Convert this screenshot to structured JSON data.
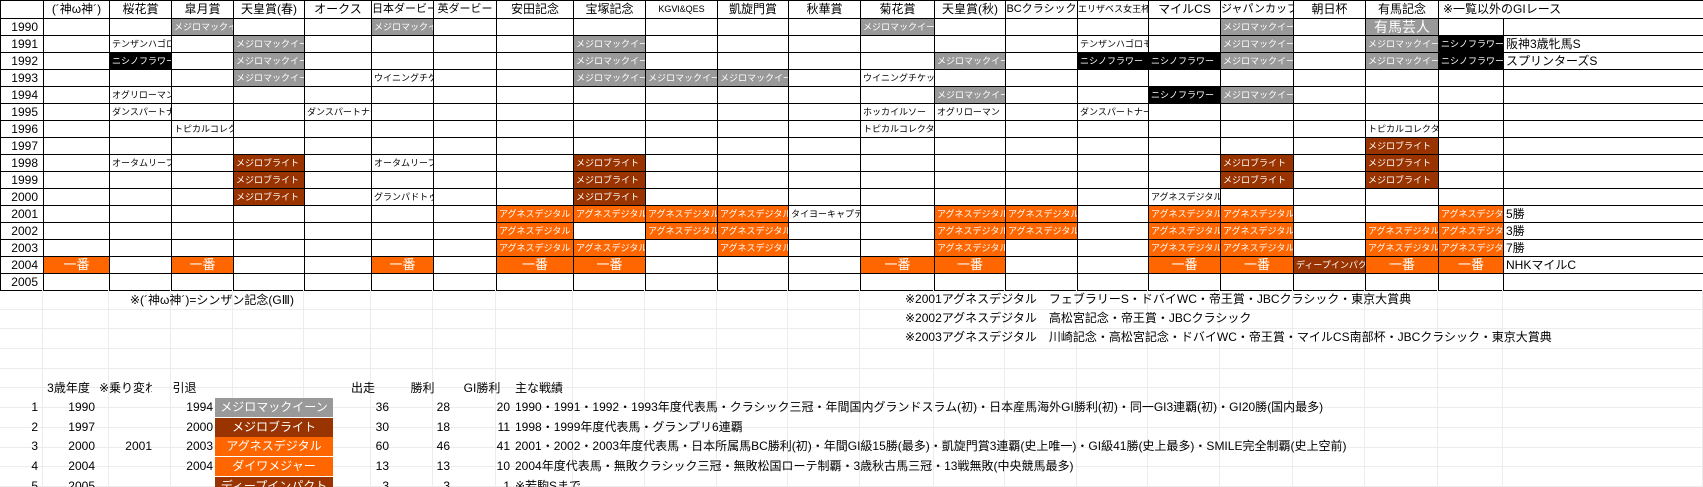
{
  "colors": {
    "mcqueen_gray": "#999999",
    "nishino_black": "#000000",
    "bright_dark_orange": "#993300",
    "digital_orange": "#FF6600",
    "grid_border": "#000000",
    "faint_gridline": "#ECECEC"
  },
  "grid": {
    "corner_label": "",
    "columns": [
      {
        "key": "kami",
        "label": "(´神ω神´)"
      },
      {
        "key": "oka",
        "label": "桜花賞"
      },
      {
        "key": "satsuki",
        "label": "皐月賞"
      },
      {
        "key": "haruten",
        "label": "天皇賞(春)"
      },
      {
        "key": "oaks",
        "label": "オークス"
      },
      {
        "key": "derby",
        "label": "日本ダービー"
      },
      {
        "key": "ederby",
        "label": "英ダービー"
      },
      {
        "key": "yasuda",
        "label": "安田記念"
      },
      {
        "key": "takarazuka",
        "label": "宝塚記念"
      },
      {
        "key": "kg",
        "label": "KGⅥ&QES"
      },
      {
        "key": "arc",
        "label": "凱旋門賞"
      },
      {
        "key": "shuka",
        "label": "秋華賞"
      },
      {
        "key": "kikka",
        "label": "菊花賞"
      },
      {
        "key": "akiten",
        "label": "天皇賞(秋)"
      },
      {
        "key": "bc",
        "label": "BCクラシック"
      },
      {
        "key": "eliza",
        "label": "エリザベス女王杯"
      },
      {
        "key": "milecs",
        "label": "マイルCS"
      },
      {
        "key": "jc",
        "label": "ジャパンカップ"
      },
      {
        "key": "asahi",
        "label": "朝日杯"
      },
      {
        "key": "arima",
        "label": "有馬記念"
      },
      {
        "key": "extra",
        "label": "※一覧以外のGIレース"
      }
    ],
    "years": [
      "1990",
      "1991",
      "1992",
      "1993",
      "1994",
      "1995",
      "1996",
      "1997",
      "1998",
      "1999",
      "2000",
      "2001",
      "2002",
      "2003",
      "2004",
      "2005"
    ],
    "cells": [
      {
        "year": "1990",
        "col": "satsuki",
        "text": "メジロマックイーン",
        "style": "gray"
      },
      {
        "year": "1990",
        "col": "derby",
        "text": "メジロマックイーン",
        "style": "gray"
      },
      {
        "year": "1990",
        "col": "kikka",
        "text": "メジロマックイーン",
        "style": "gray"
      },
      {
        "year": "1990",
        "col": "jc",
        "text": "メジロマックイーン",
        "style": "gray"
      },
      {
        "year": "1990",
        "col": "arima",
        "text": "有馬芸人",
        "style": "geinin"
      },
      {
        "year": "1991",
        "col": "oka",
        "text": "テンザンハゴロモ",
        "style": "plain"
      },
      {
        "year": "1991",
        "col": "haruten",
        "text": "メジロマックイーン",
        "style": "gray"
      },
      {
        "year": "1991",
        "col": "takarazuka",
        "text": "メジロマックイーン",
        "style": "gray"
      },
      {
        "year": "1991",
        "col": "eliza",
        "text": "テンザンハゴロモ",
        "style": "plain"
      },
      {
        "year": "1991",
        "col": "jc",
        "text": "メジロマックイーン",
        "style": "gray"
      },
      {
        "year": "1991",
        "col": "arima",
        "text": "メジロマックイーン",
        "style": "gray"
      },
      {
        "year": "1991",
        "col": "v1",
        "text": "ニシノフラワー",
        "style": "black"
      },
      {
        "year": "1991",
        "col": "v2",
        "text": "阪神3歳牝馬S",
        "style": "plain_lg"
      },
      {
        "year": "1992",
        "col": "oka",
        "text": "ニシノフラワー",
        "style": "black"
      },
      {
        "year": "1992",
        "col": "haruten",
        "text": "メジロマックイーン",
        "style": "gray"
      },
      {
        "year": "1992",
        "col": "takarazuka",
        "text": "メジロマックイーン",
        "style": "gray"
      },
      {
        "year": "1992",
        "col": "akiten",
        "text": "メジロマックイーン",
        "style": "gray"
      },
      {
        "year": "1992",
        "col": "eliza",
        "text": "ニシノフラワー",
        "style": "black"
      },
      {
        "year": "1992",
        "col": "milecs",
        "text": "ニシノフラワー",
        "style": "black"
      },
      {
        "year": "1992",
        "col": "jc",
        "text": "メジロマックイーン",
        "style": "gray"
      },
      {
        "year": "1992",
        "col": "arima",
        "text": "メジロマックイーン",
        "style": "gray"
      },
      {
        "year": "1992",
        "col": "v1",
        "text": "ニシノフラワー",
        "style": "black"
      },
      {
        "year": "1992",
        "col": "v2",
        "text": "スプリンターズS",
        "style": "plain_lg"
      },
      {
        "year": "1993",
        "col": "haruten",
        "text": "メジロマックイーン",
        "style": "gray"
      },
      {
        "year": "1993",
        "col": "derby",
        "text": "ウイニングチケット",
        "style": "plain"
      },
      {
        "year": "1993",
        "col": "takarazuka",
        "text": "メジロマックイーン",
        "style": "gray"
      },
      {
        "year": "1993",
        "col": "kg",
        "text": "メジロマックイーン",
        "style": "gray"
      },
      {
        "year": "1993",
        "col": "arc",
        "text": "メジロマックイーン",
        "style": "gray"
      },
      {
        "year": "1993",
        "col": "kikka",
        "text": "ウイニングチケット",
        "style": "plain"
      },
      {
        "year": "1994",
        "col": "oka",
        "text": "オグリローマン",
        "style": "plain"
      },
      {
        "year": "1994",
        "col": "akiten",
        "text": "メジロマックイーン",
        "style": "gray"
      },
      {
        "year": "1994",
        "col": "milecs",
        "text": "ニシノフラワー",
        "style": "black"
      },
      {
        "year": "1994",
        "col": "jc",
        "text": "メジロマックイーン",
        "style": "gray"
      },
      {
        "year": "1995",
        "col": "oka",
        "text": "ダンスパートナー",
        "style": "plain"
      },
      {
        "year": "1995",
        "col": "oaks",
        "text": "ダンスパートナー",
        "style": "plain"
      },
      {
        "year": "1995",
        "col": "kikka",
        "text": "ホッカイルソー",
        "style": "plain"
      },
      {
        "year": "1995",
        "col": "akiten",
        "text": "オグリローマン",
        "style": "plain"
      },
      {
        "year": "1995",
        "col": "eliza",
        "text": "ダンスパートナー",
        "style": "plain"
      },
      {
        "year": "1996",
        "col": "satsuki",
        "text": "トピカルコレクター",
        "style": "plain"
      },
      {
        "year": "1996",
        "col": "kikka",
        "text": "トピカルコレクター",
        "style": "plain"
      },
      {
        "year": "1996",
        "col": "arima",
        "text": "トピカルコレクター",
        "style": "plain"
      },
      {
        "year": "1997",
        "col": "arima",
        "text": "メジロブライト",
        "style": "dark"
      },
      {
        "year": "1998",
        "col": "oka",
        "text": "オータムリーフ",
        "style": "plain"
      },
      {
        "year": "1998",
        "col": "haruten",
        "text": "メジロブライト",
        "style": "dark"
      },
      {
        "year": "1998",
        "col": "derby",
        "text": "オータムリーフ",
        "style": "plain"
      },
      {
        "year": "1998",
        "col": "takarazuka",
        "text": "メジロブライト",
        "style": "dark"
      },
      {
        "year": "1998",
        "col": "jc",
        "text": "メジロブライト",
        "style": "dark"
      },
      {
        "year": "1998",
        "col": "arima",
        "text": "メジロブライト",
        "style": "dark"
      },
      {
        "year": "1999",
        "col": "haruten",
        "text": "メジロブライト",
        "style": "dark"
      },
      {
        "year": "1999",
        "col": "takarazuka",
        "text": "メジロブライト",
        "style": "dark"
      },
      {
        "year": "1999",
        "col": "jc",
        "text": "メジロブライト",
        "style": "dark"
      },
      {
        "year": "1999",
        "col": "arima",
        "text": "メジロブライト",
        "style": "dark"
      },
      {
        "year": "2000",
        "col": "haruten",
        "text": "メジロブライト",
        "style": "dark"
      },
      {
        "year": "2000",
        "col": "derby",
        "text": "グランパドトゥ",
        "style": "plain"
      },
      {
        "year": "2000",
        "col": "takarazuka",
        "text": "メジロブライト",
        "style": "dark"
      },
      {
        "year": "2000",
        "col": "milecs",
        "text": "アグネスデジタル",
        "style": "plain"
      },
      {
        "year": "2001",
        "col": "yasuda",
        "text": "アグネスデジタル",
        "style": "orange"
      },
      {
        "year": "2001",
        "col": "takarazuka",
        "text": "アグネスデジタル",
        "style": "orange"
      },
      {
        "year": "2001",
        "col": "kg",
        "text": "アグネスデジタル",
        "style": "orange"
      },
      {
        "year": "2001",
        "col": "arc",
        "text": "アグネスデジタル",
        "style": "orange"
      },
      {
        "year": "2001",
        "col": "shuka",
        "text": "タイヨーキャプテン",
        "style": "plain"
      },
      {
        "year": "2001",
        "col": "akiten",
        "text": "アグネスデジタル",
        "style": "orange"
      },
      {
        "year": "2001",
        "col": "bc",
        "text": "アグネスデジタル",
        "style": "orange"
      },
      {
        "year": "2001",
        "col": "milecs",
        "text": "アグネスデジタル",
        "style": "orange"
      },
      {
        "year": "2001",
        "col": "jc",
        "text": "アグネスデジタル",
        "style": "orange"
      },
      {
        "year": "2001",
        "col": "v1",
        "text": "アグネスデジタル",
        "style": "orange"
      },
      {
        "year": "2001",
        "col": "v2",
        "text": "5勝",
        "style": "plain_lg"
      },
      {
        "year": "2002",
        "col": "yasuda",
        "text": "アグネスデジタル",
        "style": "orange"
      },
      {
        "year": "2002",
        "col": "kg",
        "text": "アグネスデジタル",
        "style": "orange"
      },
      {
        "year": "2002",
        "col": "arc",
        "text": "アグネスデジタル",
        "style": "orange"
      },
      {
        "year": "2002",
        "col": "akiten",
        "text": "アグネスデジタル",
        "style": "orange"
      },
      {
        "year": "2002",
        "col": "bc",
        "text": "アグネスデジタル",
        "style": "orange"
      },
      {
        "year": "2002",
        "col": "milecs",
        "text": "アグネスデジタル",
        "style": "orange"
      },
      {
        "year": "2002",
        "col": "jc",
        "text": "アグネスデジタル",
        "style": "orange"
      },
      {
        "year": "2002",
        "col": "arima",
        "text": "アグネスデジタル",
        "style": "orange"
      },
      {
        "year": "2002",
        "col": "v1",
        "text": "アグネスデジタル",
        "style": "orange"
      },
      {
        "year": "2002",
        "col": "v2",
        "text": "3勝",
        "style": "plain_lg"
      },
      {
        "year": "2003",
        "col": "yasuda",
        "text": "アグネスデジタル",
        "style": "orange"
      },
      {
        "year": "2003",
        "col": "takarazuka",
        "text": "アグネスデジタル",
        "style": "orange"
      },
      {
        "year": "2003",
        "col": "arc",
        "text": "アグネスデジタル",
        "style": "orange"
      },
      {
        "year": "2003",
        "col": "akiten",
        "text": "アグネスデジタル",
        "style": "orange"
      },
      {
        "year": "2003",
        "col": "milecs",
        "text": "アグネスデジタル",
        "style": "orange"
      },
      {
        "year": "2003",
        "col": "jc",
        "text": "アグネスデジタル",
        "style": "orange"
      },
      {
        "year": "2003",
        "col": "arima",
        "text": "アグネスデジタル",
        "style": "orange"
      },
      {
        "year": "2003",
        "col": "v1",
        "text": "アグネスデジタル",
        "style": "orange"
      },
      {
        "year": "2003",
        "col": "v2",
        "text": "7勝",
        "style": "plain_lg"
      },
      {
        "year": "2004",
        "col": "kami",
        "text": "一番",
        "style": "ichiban"
      },
      {
        "year": "2004",
        "col": "satsuki",
        "text": "一番",
        "style": "ichiban"
      },
      {
        "year": "2004",
        "col": "derby",
        "text": "一番",
        "style": "ichiban"
      },
      {
        "year": "2004",
        "col": "yasuda",
        "text": "一番",
        "style": "ichiban"
      },
      {
        "year": "2004",
        "col": "takarazuka",
        "text": "一番",
        "style": "ichiban"
      },
      {
        "year": "2004",
        "col": "kikka",
        "text": "一番",
        "style": "ichiban"
      },
      {
        "year": "2004",
        "col": "akiten",
        "text": "一番",
        "style": "ichiban"
      },
      {
        "year": "2004",
        "col": "milecs",
        "text": "一番",
        "style": "ichiban"
      },
      {
        "year": "2004",
        "col": "jc",
        "text": "一番",
        "style": "ichiban"
      },
      {
        "year": "2004",
        "col": "asahi",
        "text": "ディープインパクト",
        "style": "dark"
      },
      {
        "year": "2004",
        "col": "arima",
        "text": "一番",
        "style": "ichiban"
      },
      {
        "year": "2004",
        "col": "v1",
        "text": "一番",
        "style": "ichiban"
      },
      {
        "year": "2004",
        "col": "v2",
        "text": "NHKマイルC",
        "style": "plain_lg"
      }
    ]
  },
  "notes": {
    "left": "※(´神ω神´)=シンザン記念(GⅢ)",
    "right": [
      "※2001アグネスデジタル　フェブラリーS・ドバイWC・帝王賞・JBCクラシック・東京大賞典",
      "※2002アグネスデジタル　高松宮記念・帝王賞・JBCクラシック",
      "※2003アグネスデジタル　川崎記念・高松宮記念・ドバイWC・帝王賞・マイルCS南部杯・JBCクラシック・東京大賞典"
    ]
  },
  "bottom_table": {
    "headers": {
      "debut": "3歳年度",
      "switch": "※乗り変わり",
      "retire": "引退",
      "starts": "出走",
      "wins": "勝利",
      "g1": "GI勝利",
      "record": "主な戦績"
    },
    "rows": [
      {
        "no": "1",
        "debut": "1990",
        "switch": "",
        "retire": "1994",
        "name": "メジロマックイーン",
        "style": "gray",
        "starts": "36",
        "wins": "28",
        "g1": "20",
        "record": "1990・1991・1992・1993年度代表馬・クラシック三冠・年間国内グランドスラム(初)・日本産馬海外GI勝利(初)・同一GI3連覇(初)・GI20勝(国内最多)"
      },
      {
        "no": "2",
        "debut": "1997",
        "switch": "",
        "retire": "2000",
        "name": "メジロブライト",
        "style": "dark",
        "starts": "30",
        "wins": "18",
        "g1": "11",
        "record": "1998・1999年度代表馬・グランプリ6連覇"
      },
      {
        "no": "3",
        "debut": "2000",
        "switch": "2001",
        "retire": "2003",
        "name": "アグネスデジタル",
        "style": "orange",
        "starts": "60",
        "wins": "46",
        "g1": "41",
        "record": "2001・2002・2003年度代表馬・日本所属馬BC勝利(初)・年間GI級15勝(最多)・凱旋門賞3連覇(史上唯一)・GI級41勝(史上最多)・SMILE完全制覇(史上空前)"
      },
      {
        "no": "4",
        "debut": "2004",
        "switch": "",
        "retire": "2004",
        "name": "ダイワメジャー",
        "style": "orange",
        "starts": "13",
        "wins": "13",
        "g1": "10",
        "record": "2004年度代表馬・無敗クラシック三冠・無敗松国ローテ制覇・3歳秋古馬三冠・13戦無敗(中央競馬最多)"
      },
      {
        "no": "5",
        "debut": "2005",
        "switch": "",
        "retire": "",
        "name": "ディープインパクト",
        "style": "dark",
        "starts": "3",
        "wins": "3",
        "g1": "1",
        "record": "※若駒Sまで"
      }
    ]
  }
}
